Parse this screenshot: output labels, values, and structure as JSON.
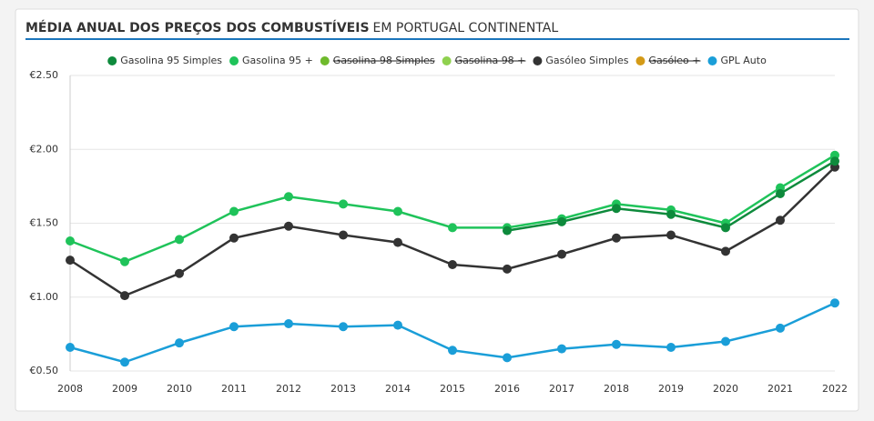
{
  "chart_data": {
    "type": "line",
    "title": "MÉDIA ANUAL DOS PREÇOS DOS COMBUSTÍVEIS",
    "title_suffix": "EM PORTUGAL CONTINENTAL",
    "categories": [
      "2008",
      "2009",
      "2010",
      "2011",
      "2012",
      "2013",
      "2014",
      "2015",
      "2016",
      "2017",
      "2018",
      "2019",
      "2020",
      "2021",
      "2022"
    ],
    "series": [
      {
        "name": "Gasolina 95 Simples",
        "color": "#0e8a3c",
        "hidden": false,
        "values": [
          null,
          null,
          null,
          null,
          null,
          null,
          null,
          null,
          1.45,
          1.51,
          1.6,
          1.56,
          1.47,
          1.7,
          1.92
        ]
      },
      {
        "name": "Gasolina 95 +",
        "color": "#1fc35a",
        "hidden": false,
        "values": [
          1.38,
          1.24,
          1.39,
          1.58,
          1.68,
          1.63,
          1.58,
          1.47,
          1.47,
          1.53,
          1.63,
          1.59,
          1.5,
          1.74,
          1.96
        ]
      },
      {
        "name": "Gasolina 98 Simples",
        "color": "#6fba2c",
        "hidden": true,
        "values": [
          null,
          null,
          null,
          null,
          null,
          null,
          null,
          null,
          null,
          null,
          null,
          null,
          null,
          null,
          null
        ]
      },
      {
        "name": "Gasolina 98 +",
        "color": "#8fd14f",
        "hidden": true,
        "values": [
          null,
          null,
          null,
          null,
          null,
          null,
          null,
          null,
          null,
          null,
          null,
          null,
          null,
          null,
          null
        ]
      },
      {
        "name": "Gasóleo Simples",
        "color": "#333333",
        "hidden": false,
        "values": [
          1.25,
          1.01,
          1.16,
          1.4,
          1.48,
          1.42,
          1.37,
          1.22,
          1.19,
          1.29,
          1.4,
          1.42,
          1.31,
          1.52,
          1.88
        ]
      },
      {
        "name": "Gasóleo +",
        "color": "#d49a17",
        "hidden": true,
        "values": [
          null,
          null,
          null,
          null,
          null,
          null,
          null,
          null,
          null,
          null,
          null,
          null,
          null,
          null,
          null
        ]
      },
      {
        "name": "GPL Auto",
        "color": "#1a9ed8",
        "hidden": false,
        "values": [
          0.66,
          0.56,
          0.69,
          0.8,
          0.82,
          0.8,
          0.81,
          0.64,
          0.59,
          0.65,
          0.68,
          0.66,
          0.7,
          0.79,
          0.96
        ]
      }
    ],
    "ylim": [
      0.5,
      2.5
    ],
    "yticks": [
      {
        "value": 0.5,
        "label": "€0.50"
      },
      {
        "value": 1.0,
        "label": "€1.00"
      },
      {
        "value": 1.5,
        "label": "€1.50"
      },
      {
        "value": 2.0,
        "label": "€2.00"
      },
      {
        "value": 2.5,
        "label": "€2.50"
      }
    ],
    "grid": true
  }
}
